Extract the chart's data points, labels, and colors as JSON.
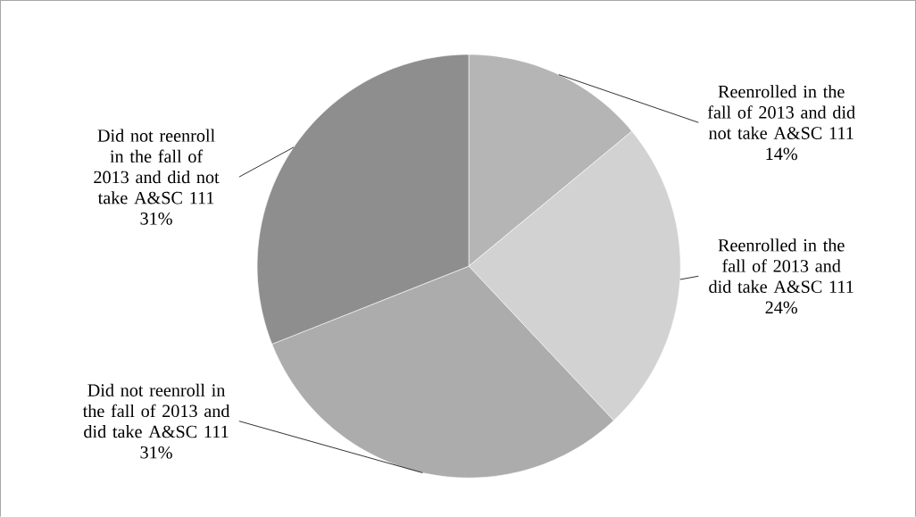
{
  "chart_data": {
    "type": "pie",
    "categories": [
      "Reenrolled in the fall of 2013 and did not take A&SC 111",
      "Reenrolled in the fall of 2013 and did take A&SC 111",
      "Did not reenroll in the fall of 2013 and did take A&SC 111",
      "Did not reenroll in the fall of 2013 and did not take A&SC 111"
    ],
    "values": [
      14,
      24,
      31,
      31
    ],
    "value_labels": [
      "14%",
      "24%",
      "31%",
      "31%"
    ],
    "colors": [
      "#b5b5b5",
      "#d2d2d2",
      "#acacac",
      "#8e8e8e"
    ]
  }
}
